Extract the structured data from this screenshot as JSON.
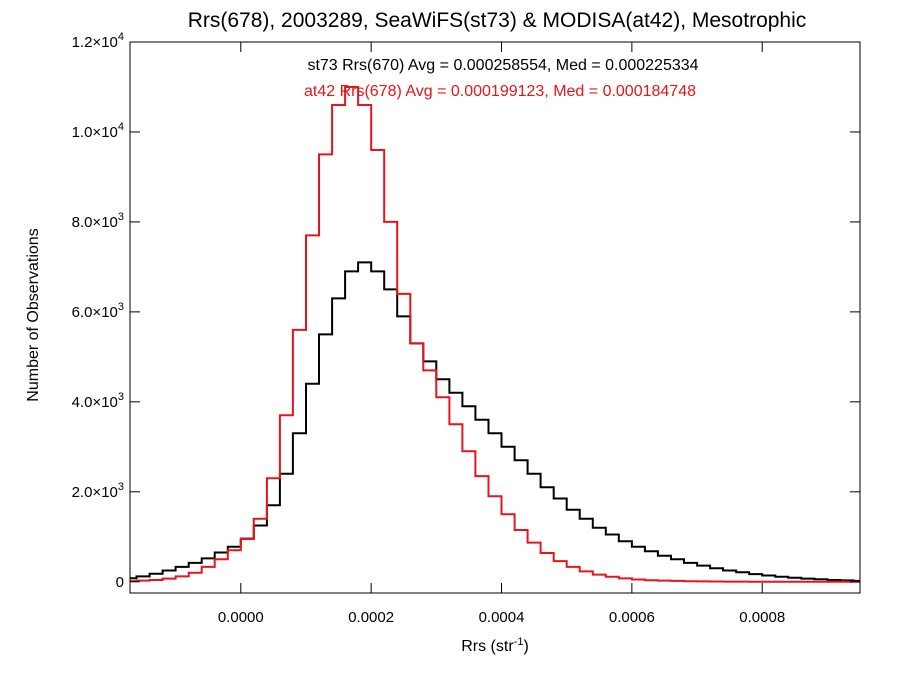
{
  "chart_data": {
    "type": "histogram",
    "title": "Rrs(678), 2003289, SeaWiFS(st73) & MODISA(at42), Mesotrophic",
    "xlabel_base": "Rrs (str",
    "xlabel_sup": "-1",
    "xlabel_close": ")",
    "ylabel": "Number of Observations",
    "xlim": [
      -0.00017,
      0.00095
    ],
    "ylim": [
      -250,
      12000
    ],
    "x_ticks": [
      {
        "value": 0.0,
        "label": "0.0000"
      },
      {
        "value": 0.0002,
        "label": "0.0002"
      },
      {
        "value": 0.0004,
        "label": "0.0004"
      },
      {
        "value": 0.0006,
        "label": "0.0006"
      },
      {
        "value": 0.0008,
        "label": "0.0008"
      }
    ],
    "y_ticks": [
      {
        "value": 0,
        "label": "0",
        "sup": ""
      },
      {
        "value": 2000,
        "label": "2.0×10",
        "sup": "3"
      },
      {
        "value": 4000,
        "label": "4.0×10",
        "sup": "3"
      },
      {
        "value": 6000,
        "label": "6.0×10",
        "sup": "3"
      },
      {
        "value": 8000,
        "label": "8.0×10",
        "sup": "3"
      },
      {
        "value": 10000,
        "label": "1.0×10",
        "sup": "4"
      },
      {
        "value": 12000,
        "label": "1.2×10",
        "sup": "4"
      }
    ],
    "annotations": [
      {
        "text": "st73 Rrs(670) Avg = 0.000258554, Med = 0.000225334",
        "color": "#000000"
      },
      {
        "text": "at42 Rrs(678) Avg = 0.000199123, Med = 0.000184748",
        "color": "#e8141b"
      }
    ],
    "series": [
      {
        "name": "st73",
        "color": "#000000",
        "x": [
          -0.00017,
          -0.00015,
          -0.00013,
          -0.00011,
          -9e-05,
          -7e-05,
          -5e-05,
          -3e-05,
          -1e-05,
          1e-05,
          3e-05,
          5e-05,
          7e-05,
          9e-05,
          0.00011,
          0.00013,
          0.00015,
          0.00017,
          0.00019,
          0.00021,
          0.00023,
          0.00025,
          0.00027,
          0.00029,
          0.00031,
          0.00033,
          0.00035,
          0.00037,
          0.00039,
          0.00041,
          0.00043,
          0.00045,
          0.00047,
          0.00049,
          0.00051,
          0.00053,
          0.00055,
          0.00057,
          0.00059,
          0.00061,
          0.00063,
          0.00065,
          0.00067,
          0.00069,
          0.00071,
          0.00073,
          0.00075,
          0.00077,
          0.00079,
          0.00081,
          0.00083,
          0.00085,
          0.00087,
          0.00089,
          0.00091,
          0.00093,
          0.00095
        ],
        "y": [
          80,
          120,
          180,
          250,
          330,
          420,
          520,
          650,
          780,
          960,
          1250,
          1700,
          2400,
          3300,
          4400,
          5500,
          6300,
          6900,
          7100,
          6900,
          6500,
          5900,
          5300,
          4900,
          4500,
          4200,
          3900,
          3600,
          3300,
          3000,
          2700,
          2400,
          2100,
          1850,
          1600,
          1400,
          1200,
          1050,
          900,
          780,
          680,
          580,
          500,
          420,
          360,
          300,
          250,
          210,
          170,
          140,
          110,
          90,
          70,
          55,
          40,
          30,
          20
        ]
      },
      {
        "name": "at42",
        "color": "#e8141b",
        "x": [
          -0.00017,
          -0.00015,
          -0.00013,
          -0.00011,
          -9e-05,
          -7e-05,
          -5e-05,
          -3e-05,
          -1e-05,
          1e-05,
          3e-05,
          5e-05,
          7e-05,
          9e-05,
          0.00011,
          0.00013,
          0.00015,
          0.00017,
          0.00019,
          0.00021,
          0.00023,
          0.00025,
          0.00027,
          0.00029,
          0.00031,
          0.00033,
          0.00035,
          0.00037,
          0.00039,
          0.00041,
          0.00043,
          0.00045,
          0.00047,
          0.00049,
          0.00051,
          0.00053,
          0.00055,
          0.00057,
          0.00059,
          0.00061,
          0.00063,
          0.00065,
          0.00067,
          0.00069,
          0.00071,
          0.00073,
          0.00075,
          0.00077,
          0.00079,
          0.00081,
          0.00083,
          0.00085,
          0.00087,
          0.00089,
          0.00091,
          0.00093,
          0.00095
        ],
        "y": [
          15,
          25,
          40,
          70,
          120,
          200,
          330,
          500,
          700,
          950,
          1400,
          2300,
          3700,
          5600,
          7700,
          9500,
          10600,
          11000,
          10600,
          9600,
          8000,
          6400,
          5300,
          4700,
          4100,
          3500,
          2900,
          2350,
          1900,
          1500,
          1150,
          870,
          640,
          460,
          330,
          230,
          160,
          110,
          75,
          50,
          35,
          25,
          18,
          12,
          8,
          6,
          4,
          3,
          2,
          2,
          1,
          1,
          1,
          0,
          0,
          0,
          0
        ]
      }
    ]
  }
}
